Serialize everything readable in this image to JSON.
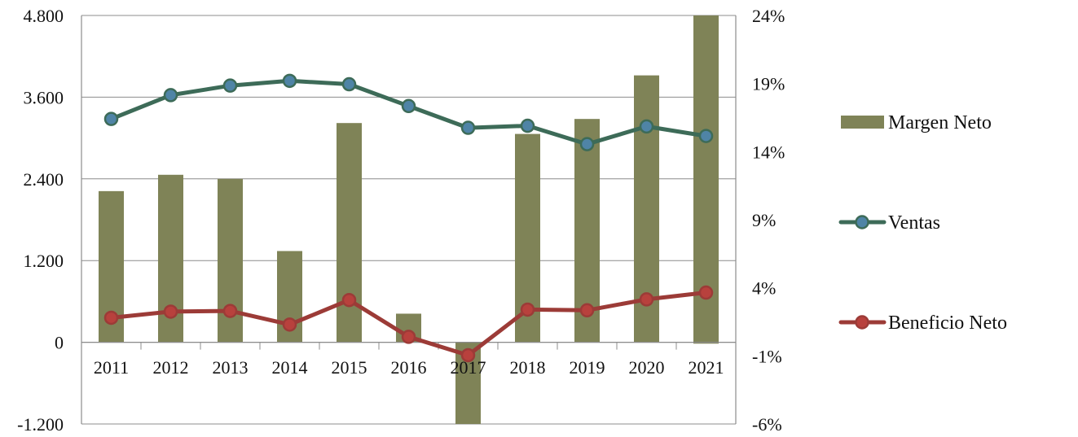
{
  "chart_data": {
    "type": "bar+line",
    "categories": [
      "2011",
      "2012",
      "2013",
      "2014",
      "2015",
      "2016",
      "2017",
      "2018",
      "2019",
      "2020",
      "2021"
    ],
    "series": [
      {
        "name": "Margen Neto",
        "type": "bar",
        "axis": "right",
        "color": "#7f8357",
        "values": [
          11.1,
          12.3,
          12.0,
          6.7,
          16.1,
          2.1,
          -7.1,
          15.3,
          16.4,
          19.6,
          24.1
        ]
      },
      {
        "name": "Ventas",
        "type": "line",
        "axis": "left",
        "color": "#3d6b58",
        "marker_color": "#4f84a6",
        "values": [
          3280,
          3630,
          3770,
          3840,
          3790,
          3470,
          3150,
          3180,
          2910,
          3170,
          3030
        ]
      },
      {
        "name": "Beneficio Neto",
        "type": "line",
        "axis": "left",
        "color": "#9c3b37",
        "marker_color": "#b8413d",
        "values": [
          360,
          450,
          460,
          260,
          620,
          80,
          -190,
          480,
          470,
          630,
          730
        ]
      }
    ],
    "left_axis": {
      "ylim": [
        -1200,
        4800
      ],
      "ticks": [
        -1200,
        0,
        1200,
        2400,
        3600,
        4800
      ],
      "tick_labels": [
        "-1.200",
        "0",
        "1.200",
        "2.400",
        "3.600",
        "4.800"
      ]
    },
    "right_axis": {
      "ylim": [
        -6,
        24
      ],
      "ticks": [
        -6,
        -1,
        4,
        9,
        14,
        19,
        24
      ],
      "tick_labels": [
        "-6%",
        "-1%",
        "4%",
        "9%",
        "14%",
        "19%",
        "24%"
      ]
    },
    "grid": true,
    "legend_position": "right",
    "title": "",
    "xlabel": "",
    "ylabel": ""
  },
  "legend": {
    "items": [
      {
        "label": "Margen Neto",
        "kind": "bar",
        "color": "#7f8357"
      },
      {
        "label": "Ventas",
        "kind": "line",
        "color": "#3d6b58",
        "marker_color": "#4f84a6"
      },
      {
        "label": "Beneficio Neto",
        "kind": "line",
        "color": "#9c3b37",
        "marker_color": "#b8413d"
      }
    ]
  }
}
